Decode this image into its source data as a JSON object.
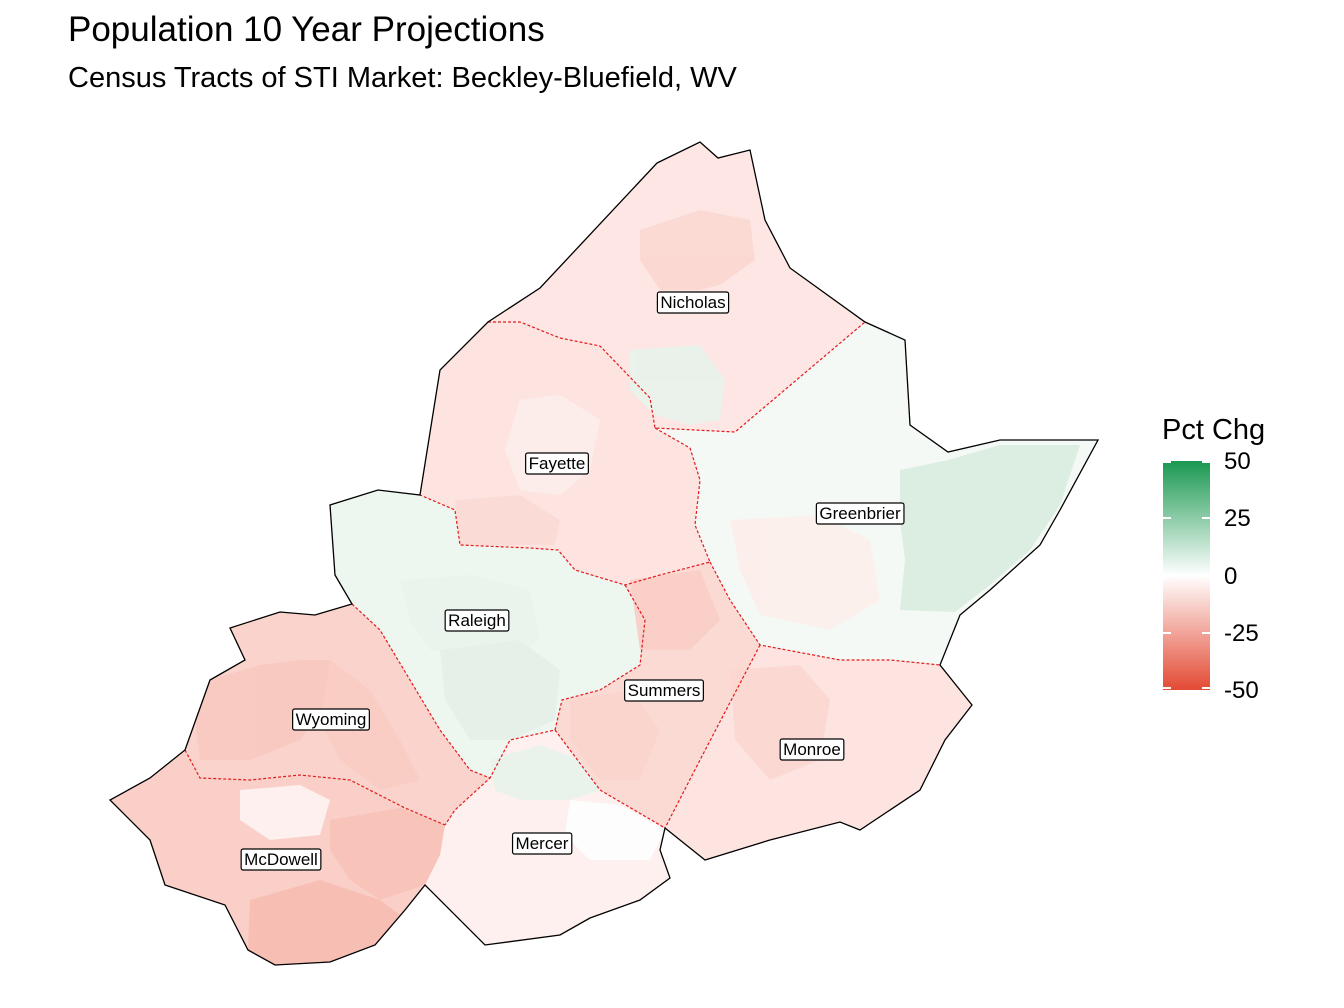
{
  "title": "Population 10 Year Projections",
  "subtitle": "Census Tracts of STI Market: Beckley-Bluefield, WV",
  "legend": {
    "title": "Pct Chg",
    "ticks": [
      "50",
      "25",
      "0",
      "-25",
      "-50"
    ],
    "range": [
      -50,
      50
    ],
    "colors": {
      "high": "#1a9850",
      "mid": "#ffffff",
      "low": "#e34a33"
    }
  },
  "counties": [
    {
      "name": "Nicholas",
      "fill": "#fde6e3"
    },
    {
      "name": "Fayette",
      "fill": "#fde4e1"
    },
    {
      "name": "Greenbrier",
      "fill": "#f4f9f5"
    },
    {
      "name": "Raleigh",
      "fill": "#eef6f0"
    },
    {
      "name": "Summers",
      "fill": "#fbdad4"
    },
    {
      "name": "Monroe",
      "fill": "#fde4e0"
    },
    {
      "name": "Wyoming",
      "fill": "#fad3cc"
    },
    {
      "name": "McDowell",
      "fill": "#f9cfc7"
    },
    {
      "name": "Mercer",
      "fill": "#fdf0ee"
    }
  ],
  "styles": {
    "outer_border": "#000000",
    "inner_border": "#e31a1c"
  }
}
